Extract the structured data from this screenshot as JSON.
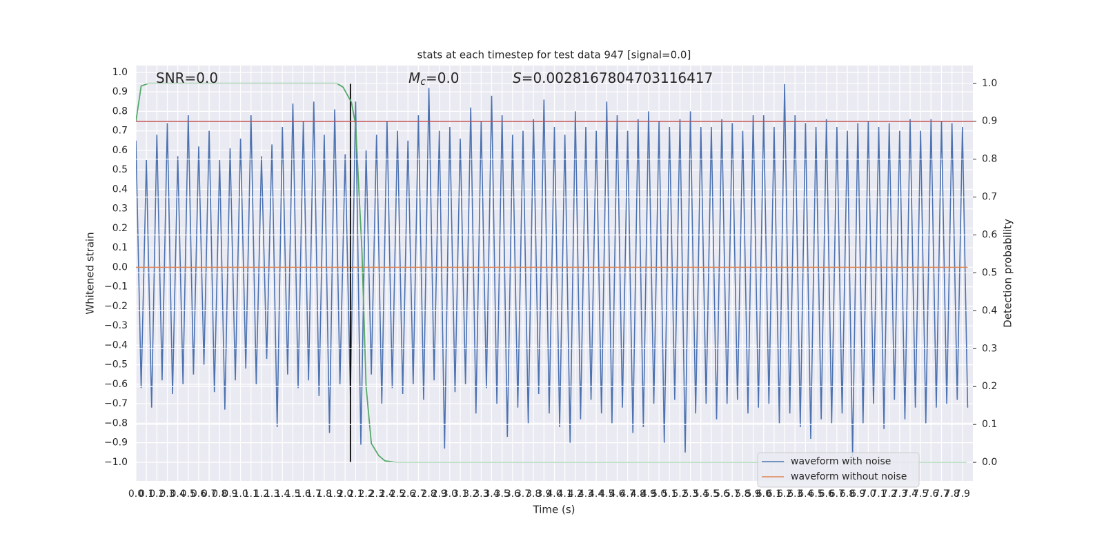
{
  "chart_data": {
    "type": "line",
    "title": "stats at each timestep for test data 947 [signal=0.0]",
    "xlabel": "Time (s)",
    "ylabel": "Whitened strain",
    "y2label": "Detection probability",
    "annotations": [
      {
        "text": "SNR=0.0"
      },
      {
        "italic": "M",
        "sub": "c",
        "text": "=0.0"
      },
      {
        "italic": "S",
        "text": "=0.0028167804703116417"
      }
    ],
    "grid": true,
    "y2grid": true,
    "background": "#eaeaf2",
    "legend": "lower right",
    "xlim": [
      0,
      8.0
    ],
    "ylim": [
      -1.096,
      1.035
    ],
    "y2lim": [
      -0.049,
      1.047
    ],
    "xticks": [
      {
        "value": 0,
        "label": "0.0"
      },
      0.1,
      0.2,
      0.3,
      0.4,
      0.5,
      0.6,
      0.7,
      0.8,
      0.9,
      {
        "value": 1,
        "label": "1.0"
      },
      1.1,
      1.2,
      1.3,
      1.4,
      1.5,
      1.6,
      1.7,
      1.8,
      1.9,
      {
        "value": 2,
        "label": "2.0"
      },
      2.1,
      2.2,
      2.3,
      2.4,
      2.5,
      2.6,
      2.7,
      2.8,
      2.9,
      {
        "value": 3,
        "label": "3.0"
      },
      3.1,
      3.2,
      3.3,
      3.4,
      3.5,
      3.6,
      3.7,
      3.8,
      3.9,
      {
        "value": 4,
        "label": "4.0"
      },
      4.1,
      4.2,
      4.3,
      4.4,
      4.5,
      4.6,
      4.7,
      4.8,
      4.9,
      {
        "value": 5,
        "label": "5.0"
      },
      5.1,
      5.2,
      5.3,
      5.4,
      5.5,
      5.6,
      5.7,
      5.8,
      5.9,
      {
        "value": 6,
        "label": "6.0"
      },
      6.1,
      6.2,
      6.3,
      6.4,
      6.5,
      6.6,
      6.7,
      6.8,
      6.9,
      {
        "value": 7,
        "label": "7.0"
      },
      7.1,
      7.2,
      7.3,
      7.4,
      7.5,
      7.6,
      7.7,
      7.8,
      7.9
    ],
    "yticks": [
      {
        "value": -1,
        "label": "−1.0"
      },
      {
        "value": -0.9,
        "label": "−0.9"
      },
      {
        "value": -0.8,
        "label": "−0.8"
      },
      {
        "value": -0.7,
        "label": "−0.7"
      },
      {
        "value": -0.6,
        "label": "−0.6"
      },
      {
        "value": -0.5,
        "label": "−0.5"
      },
      {
        "value": -0.4,
        "label": "−0.4"
      },
      {
        "value": -0.3,
        "label": "−0.3"
      },
      {
        "value": -0.2,
        "label": "−0.2"
      },
      {
        "value": -0.1,
        "label": "−0.1"
      },
      {
        "value": 0,
        "label": "0.0"
      },
      0.1,
      0.2,
      0.3,
      0.4,
      0.5,
      0.6,
      0.7,
      0.8,
      0.9,
      {
        "value": 1,
        "label": "1.0"
      }
    ],
    "y2ticks": [
      {
        "value": 0,
        "label": "0.0"
      },
      0.1,
      0.2,
      0.3,
      0.4,
      0.5,
      0.6,
      0.7,
      0.8,
      0.9,
      {
        "value": 1,
        "label": "1.0"
      }
    ],
    "series": [
      {
        "name": "waveform with noise",
        "color": "#4c72b0",
        "x": [
          0,
          0.05,
          0.1,
          0.15,
          0.2,
          0.25,
          0.3,
          0.35,
          0.4,
          0.45,
          0.5,
          0.55,
          0.6,
          0.65,
          0.7,
          0.75,
          0.8,
          0.85,
          0.9,
          0.95,
          1,
          1.05,
          1.1,
          1.15,
          1.2,
          1.25,
          1.3,
          1.35,
          1.4,
          1.45,
          1.5,
          1.55,
          1.6,
          1.65,
          1.7,
          1.75,
          1.8,
          1.85,
          1.9,
          1.95,
          2,
          2.05,
          2.1,
          2.15,
          2.2,
          2.25,
          2.3,
          2.35,
          2.4,
          2.45,
          2.5,
          2.55,
          2.6,
          2.65,
          2.7,
          2.75,
          2.8,
          2.85,
          2.9,
          2.95,
          3,
          3.05,
          3.1,
          3.15,
          3.2,
          3.25,
          3.3,
          3.35,
          3.4,
          3.45,
          3.5,
          3.55,
          3.6,
          3.65,
          3.7,
          3.75,
          3.8,
          3.85,
          3.9,
          3.95,
          4,
          4.05,
          4.1,
          4.15,
          4.2,
          4.25,
          4.3,
          4.35,
          4.4,
          4.45,
          4.5,
          4.55,
          4.6,
          4.65,
          4.7,
          4.75,
          4.8,
          4.85,
          4.9,
          4.95,
          5,
          5.05,
          5.1,
          5.15,
          5.2,
          5.25,
          5.3,
          5.35,
          5.4,
          5.45,
          5.5,
          5.55,
          5.6,
          5.65,
          5.7,
          5.75,
          5.8,
          5.85,
          5.9,
          5.95,
          6,
          6.05,
          6.1,
          6.15,
          6.2,
          6.25,
          6.3,
          6.35,
          6.4,
          6.45,
          6.5,
          6.55,
          6.6,
          6.65,
          6.7,
          6.75,
          6.8,
          6.85,
          6.9,
          6.95,
          7,
          7.05,
          7.1,
          7.15,
          7.2,
          7.25,
          7.3,
          7.35,
          7.4,
          7.45,
          7.5,
          7.55,
          7.6,
          7.65,
          7.7,
          7.75,
          7.8,
          7.85,
          7.9,
          7.95
        ],
        "values": [
          0.65,
          -0.62,
          0.55,
          -0.72,
          0.68,
          -0.58,
          0.74,
          -0.65,
          0.57,
          -0.6,
          0.78,
          -0.55,
          0.62,
          -0.5,
          0.7,
          -0.64,
          0.55,
          -0.73,
          0.61,
          -0.58,
          0.66,
          -0.52,
          0.78,
          -0.6,
          0.57,
          -0.47,
          0.63,
          -0.82,
          0.72,
          -0.55,
          0.84,
          -0.62,
          0.75,
          -0.58,
          0.85,
          -0.66,
          0.68,
          -0.85,
          0.81,
          -0.6,
          0.58,
          -0.66,
          0.85,
          -0.91,
          0.6,
          -0.55,
          0.68,
          -0.7,
          0.75,
          -0.62,
          0.7,
          -0.65,
          0.65,
          -0.6,
          0.78,
          -0.68,
          0.92,
          -0.58,
          0.7,
          -0.93,
          0.72,
          -0.64,
          0.66,
          -0.6,
          0.82,
          -0.75,
          0.75,
          -0.62,
          0.88,
          -0.7,
          0.78,
          -0.87,
          0.68,
          -0.72,
          0.7,
          -0.8,
          0.76,
          -0.65,
          0.86,
          -0.75,
          0.72,
          -0.82,
          0.68,
          -0.9,
          0.8,
          -0.78,
          0.72,
          -0.68,
          0.7,
          -0.75,
          0.85,
          -0.8,
          0.78,
          -0.72,
          0.7,
          -0.85,
          0.76,
          -0.82,
          0.8,
          -0.7,
          0.75,
          -0.9,
          0.72,
          -0.68,
          0.76,
          -0.95,
          0.8,
          -0.75,
          0.72,
          -0.7,
          0.72,
          -0.78,
          0.76,
          -0.7,
          0.74,
          -0.68,
          0.7,
          -0.75,
          0.78,
          -0.72,
          0.78,
          -0.7,
          0.72,
          -0.8,
          0.94,
          -0.75,
          0.78,
          -0.82,
          0.74,
          -0.88,
          0.72,
          -0.78,
          0.76,
          -0.8,
          0.72,
          -0.75,
          0.7,
          -0.97,
          0.74,
          -0.8,
          0.75,
          -0.7,
          0.72,
          -0.83,
          0.74,
          -0.68,
          0.7,
          -0.78,
          0.76,
          -0.72,
          0.7,
          -0.8,
          0.76,
          -0.72,
          0.75,
          -0.7,
          0.74,
          -0.68,
          0.72,
          -0.72
        ]
      },
      {
        "name": "waveform without noise",
        "color": "#dd8452",
        "x": [
          0,
          7.95
        ],
        "values": [
          0,
          0
        ]
      }
    ],
    "detection_probability": {
      "color": "#55a868",
      "axis": "y2",
      "x": [
        0,
        0.05,
        0.12,
        0.5,
        1.0,
        1.5,
        1.92,
        1.98,
        2.02,
        2.06,
        2.1,
        2.16,
        2.2,
        2.25,
        2.32,
        2.38,
        2.49,
        3.0,
        7.94
      ],
      "values": [
        0.9,
        0.993,
        1.0,
        1.0,
        1.0,
        1.0,
        1.0,
        0.99,
        0.97,
        0.95,
        0.89,
        0.56,
        0.2,
        0.05,
        0.018,
        0.004,
        0.0,
        0.0,
        0.0
      ]
    },
    "threshold": {
      "value": 0.9,
      "color": "#c44e52",
      "axis": "y2"
    },
    "marker_time": {
      "value": 2.05,
      "span": [
        0,
        1
      ],
      "color": "#000000",
      "axis": "y2"
    }
  }
}
